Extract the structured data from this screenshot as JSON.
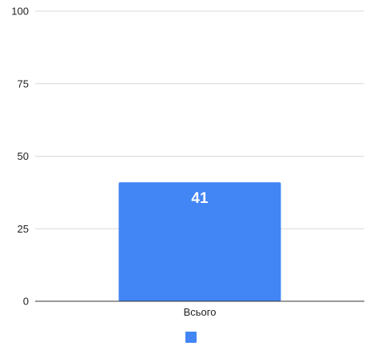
{
  "chart_data": {
    "type": "bar",
    "categories": [
      "Всього"
    ],
    "series": [
      {
        "values": [
          41
        ],
        "color": "#4285f4"
      }
    ],
    "ylim": [
      0,
      100
    ],
    "yticks": [
      "0",
      "25",
      "50",
      "75",
      "100"
    ],
    "data_labels": [
      "41"
    ],
    "grid": true,
    "legend": "bottom",
    "title": "",
    "xlabel": "",
    "ylabel": ""
  }
}
